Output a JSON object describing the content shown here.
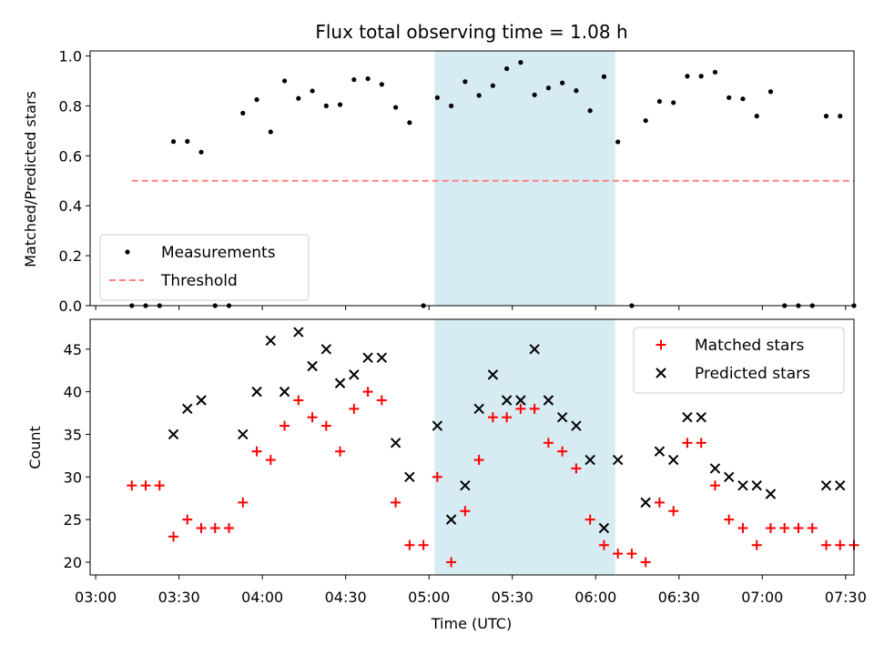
{
  "title": "Flux total observing time = 1.08 h",
  "xlabel": "Time (UTC)",
  "x_ticks": [
    "03:00",
    "03:30",
    "04:00",
    "04:30",
    "05:00",
    "05:30",
    "06:00",
    "06:30",
    "07:00",
    "07:30"
  ],
  "highlight_band": {
    "start": "05:02",
    "end": "06:07",
    "color": "#add8e6"
  },
  "chart_data": [
    {
      "type": "scatter",
      "ylabel": "Matched/Predicted stars",
      "ylim": [
        0,
        1.02
      ],
      "yticks": [
        "0.0",
        "0.2",
        "0.4",
        "0.6",
        "0.8",
        "1.0"
      ],
      "legend_position": "lower-left",
      "series": [
        {
          "name": "Measurements",
          "color": "#000000",
          "marker": "dot",
          "points": [
            [
              "03:13",
              0
            ],
            [
              "03:18",
              0
            ],
            [
              "03:23",
              0
            ],
            [
              "03:28",
              0.657
            ],
            [
              "03:33",
              0.658
            ],
            [
              "03:38",
              0.615
            ],
            [
              "03:43",
              0
            ],
            [
              "03:48",
              0
            ],
            [
              "03:53",
              0.771
            ],
            [
              "03:58",
              0.825
            ],
            [
              "04:03",
              0.696
            ],
            [
              "04:08",
              0.9
            ],
            [
              "04:13",
              0.83
            ],
            [
              "04:18",
              0.86
            ],
            [
              "04:23",
              0.8
            ],
            [
              "04:28",
              0.805
            ],
            [
              "04:33",
              0.905
            ],
            [
              "04:38",
              0.909
            ],
            [
              "04:43",
              0.886
            ],
            [
              "04:48",
              0.794
            ],
            [
              "04:53",
              0.733
            ],
            [
              "04:58",
              0
            ],
            [
              "05:03",
              0.833
            ],
            [
              "05:08",
              0.8
            ],
            [
              "05:13",
              0.897
            ],
            [
              "05:18",
              0.842
            ],
            [
              "05:23",
              0.881
            ],
            [
              "05:28",
              0.949
            ],
            [
              "05:33",
              0.974
            ],
            [
              "05:38",
              0.844
            ],
            [
              "05:43",
              0.872
            ],
            [
              "05:48",
              0.892
            ],
            [
              "05:53",
              0.861
            ],
            [
              "05:58",
              0.781
            ],
            [
              "06:03",
              0.917
            ],
            [
              "06:08",
              0.656
            ],
            [
              "06:13",
              0
            ],
            [
              "06:18",
              0.741
            ],
            [
              "06:23",
              0.818
            ],
            [
              "06:28",
              0.813
            ],
            [
              "06:33",
              0.919
            ],
            [
              "06:38",
              0.919
            ],
            [
              "06:43",
              0.935
            ],
            [
              "06:48",
              0.833
            ],
            [
              "06:53",
              0.828
            ],
            [
              "06:58",
              0.759
            ],
            [
              "07:03",
              0.857
            ],
            [
              "07:08",
              0
            ],
            [
              "07:13",
              0
            ],
            [
              "07:18",
              0
            ],
            [
              "07:23",
              0.759
            ],
            [
              "07:28",
              0.759
            ],
            [
              "07:33",
              0
            ]
          ]
        },
        {
          "name": "Threshold",
          "color": "#ff8080",
          "style": "dashed",
          "points": [
            [
              "03:13",
              0.5
            ],
            [
              "07:33",
              0.5
            ]
          ]
        }
      ]
    },
    {
      "type": "scatter",
      "ylabel": "Count",
      "ylim": [
        18.5,
        48.5
      ],
      "yticks": [
        "20",
        "25",
        "30",
        "35",
        "40",
        "45"
      ],
      "legend_position": "top-right",
      "series": [
        {
          "name": "Matched stars",
          "color": "#ff0000",
          "marker": "plus",
          "points": [
            [
              "03:13",
              29
            ],
            [
              "03:18",
              29
            ],
            [
              "03:23",
              29
            ],
            [
              "03:28",
              23
            ],
            [
              "03:33",
              25
            ],
            [
              "03:38",
              24
            ],
            [
              "03:43",
              24
            ],
            [
              "03:48",
              24
            ],
            [
              "03:53",
              27
            ],
            [
              "03:58",
              33
            ],
            [
              "04:03",
              32
            ],
            [
              "04:08",
              36
            ],
            [
              "04:13",
              39
            ],
            [
              "04:18",
              37
            ],
            [
              "04:23",
              36
            ],
            [
              "04:28",
              33
            ],
            [
              "04:33",
              38
            ],
            [
              "04:38",
              40
            ],
            [
              "04:43",
              39
            ],
            [
              "04:48",
              27
            ],
            [
              "04:53",
              22
            ],
            [
              "04:58",
              22
            ],
            [
              "05:03",
              30
            ],
            [
              "05:08",
              20
            ],
            [
              "05:13",
              26
            ],
            [
              "05:18",
              32
            ],
            [
              "05:23",
              37
            ],
            [
              "05:28",
              37
            ],
            [
              "05:33",
              38
            ],
            [
              "05:38",
              38
            ],
            [
              "05:43",
              34
            ],
            [
              "05:48",
              33
            ],
            [
              "05:53",
              31
            ],
            [
              "05:58",
              25
            ],
            [
              "06:03",
              22
            ],
            [
              "06:08",
              21
            ],
            [
              "06:13",
              21
            ],
            [
              "06:18",
              20
            ],
            [
              "06:23",
              27
            ],
            [
              "06:28",
              26
            ],
            [
              "06:33",
              34
            ],
            [
              "06:38",
              34
            ],
            [
              "06:43",
              29
            ],
            [
              "06:48",
              25
            ],
            [
              "06:53",
              24
            ],
            [
              "06:58",
              22
            ],
            [
              "07:03",
              24
            ],
            [
              "07:08",
              24
            ],
            [
              "07:13",
              24
            ],
            [
              "07:18",
              24
            ],
            [
              "07:23",
              22
            ],
            [
              "07:28",
              22
            ],
            [
              "07:33",
              22
            ]
          ]
        },
        {
          "name": "Predicted stars",
          "color": "#000000",
          "marker": "x",
          "points": [
            [
              "03:28",
              35
            ],
            [
              "03:33",
              38
            ],
            [
              "03:38",
              39
            ],
            [
              "03:53",
              35
            ],
            [
              "03:58",
              40
            ],
            [
              "04:03",
              46
            ],
            [
              "04:08",
              40
            ],
            [
              "04:13",
              47
            ],
            [
              "04:18",
              43
            ],
            [
              "04:23",
              45
            ],
            [
              "04:28",
              41
            ],
            [
              "04:33",
              42
            ],
            [
              "04:38",
              44
            ],
            [
              "04:43",
              44
            ],
            [
              "04:48",
              34
            ],
            [
              "04:53",
              30
            ],
            [
              "05:03",
              36
            ],
            [
              "05:08",
              25
            ],
            [
              "05:13",
              29
            ],
            [
              "05:18",
              38
            ],
            [
              "05:23",
              42
            ],
            [
              "05:28",
              39
            ],
            [
              "05:33",
              39
            ],
            [
              "05:38",
              45
            ],
            [
              "05:43",
              39
            ],
            [
              "05:48",
              37
            ],
            [
              "05:53",
              36
            ],
            [
              "05:58",
              32
            ],
            [
              "06:03",
              24
            ],
            [
              "06:08",
              32
            ],
            [
              "06:18",
              27
            ],
            [
              "06:23",
              33
            ],
            [
              "06:28",
              32
            ],
            [
              "06:33",
              37
            ],
            [
              "06:38",
              37
            ],
            [
              "06:43",
              31
            ],
            [
              "06:48",
              30
            ],
            [
              "06:53",
              29
            ],
            [
              "06:58",
              29
            ],
            [
              "07:03",
              28
            ],
            [
              "07:23",
              29
            ],
            [
              "07:28",
              29
            ]
          ]
        }
      ]
    }
  ]
}
